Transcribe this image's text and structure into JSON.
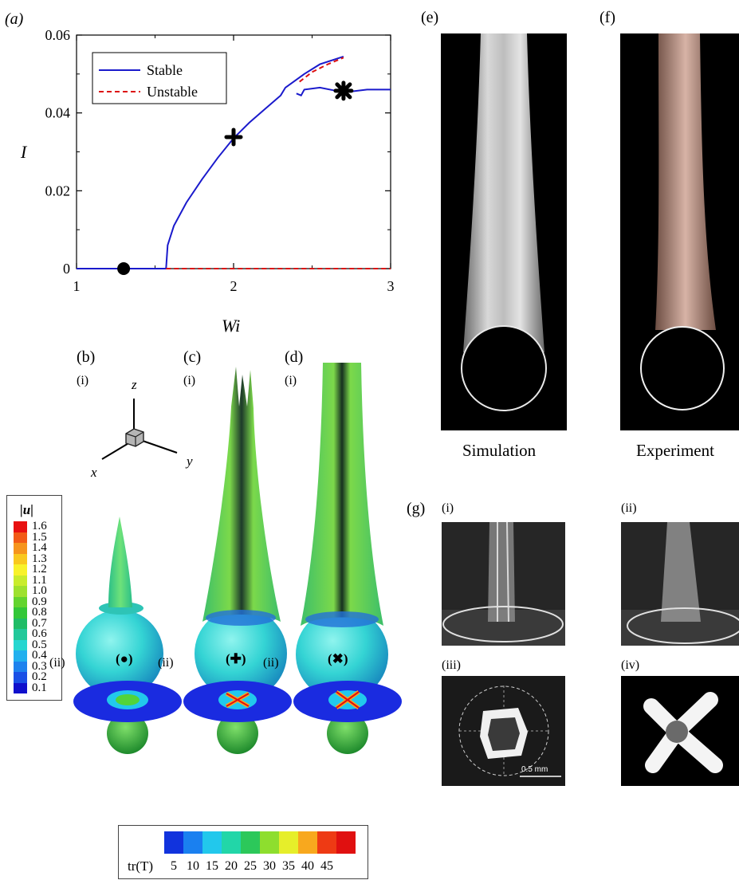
{
  "panels": {
    "a": "(a)",
    "b": "(b)",
    "c": "(c)",
    "d": "(d)",
    "e": "(e)",
    "f": "(f)",
    "g": "(g)"
  },
  "sublabels": {
    "i": "(i)",
    "ii": "(ii)",
    "iii": "(iii)",
    "iv": "(iv)"
  },
  "markers": {
    "circle": "(●)",
    "plus": "(✚)",
    "cross": "(✖)"
  },
  "chart_data": {
    "type": "line",
    "xlabel": "Wi",
    "ylabel": "I",
    "xlim": [
      1,
      3
    ],
    "ylim": [
      0,
      0.06
    ],
    "xticks": [
      "1",
      "2",
      "3"
    ],
    "yticks": [
      "0",
      "0.02",
      "0.04",
      "0.06"
    ],
    "legend_position": "top-left",
    "series": [
      {
        "name": "Stable",
        "color": "#1a1acc",
        "style": "solid",
        "segments": [
          [
            [
              1.0,
              0
            ],
            [
              1.57,
              0
            ]
          ],
          [
            [
              1.57,
              0
            ],
            [
              1.58,
              0.006
            ],
            [
              1.62,
              0.011
            ],
            [
              1.7,
              0.017
            ],
            [
              1.8,
              0.023
            ],
            [
              1.9,
              0.0285
            ],
            [
              2.0,
              0.0335
            ],
            [
              2.1,
              0.0375
            ],
            [
              2.2,
              0.041
            ],
            [
              2.3,
              0.0445
            ],
            [
              2.33,
              0.0465
            ],
            [
              2.45,
              0.05
            ],
            [
              2.55,
              0.0525
            ],
            [
              2.7,
              0.0545
            ]
          ],
          [
            [
              2.4,
              0.045
            ],
            [
              2.43,
              0.0445
            ],
            [
              2.45,
              0.046
            ],
            [
              2.55,
              0.0465
            ],
            [
              2.65,
              0.0457
            ],
            [
              2.75,
              0.0455
            ],
            [
              2.85,
              0.046
            ],
            [
              3.0,
              0.046
            ]
          ]
        ]
      },
      {
        "name": "Unstable",
        "color": "#dd1111",
        "style": "dashed",
        "segments": [
          [
            [
              1.57,
              0
            ],
            [
              3.0,
              0
            ]
          ],
          [
            [
              2.42,
              0.048
            ],
            [
              2.5,
              0.0505
            ],
            [
              2.6,
              0.0525
            ],
            [
              2.7,
              0.0542
            ]
          ]
        ]
      }
    ],
    "points": [
      {
        "marker": "circle",
        "x": 1.3,
        "y": 0
      },
      {
        "marker": "plus",
        "x": 2.0,
        "y": 0.0338
      },
      {
        "marker": "cross",
        "x": 2.7,
        "y": 0.0457
      }
    ]
  },
  "axes3d": {
    "z": "z",
    "x": "x",
    "y": "y"
  },
  "velocity_colorbar": {
    "title": "|u|",
    "ticks": [
      "1.6",
      "1.5",
      "1.4",
      "1.3",
      "1.2",
      "1.1",
      "1.0",
      "0.9",
      "0.8",
      "0.7",
      "0.6",
      "0.5",
      "0.4",
      "0.3",
      "0.2",
      "0.1"
    ],
    "colors": [
      "#e81010",
      "#f25a16",
      "#f6941c",
      "#f9c81e",
      "#f8f22a",
      "#c9ec2c",
      "#9ee12e",
      "#63d42e",
      "#33c738",
      "#1fbc66",
      "#22c89a",
      "#26d6d0",
      "#22b0ee",
      "#1e82ee",
      "#1a50e6",
      "#1010cc"
    ]
  },
  "stress_colorbar": {
    "label": "tr(T)",
    "ticks": [
      "5",
      "10",
      "15",
      "20",
      "25",
      "30",
      "35",
      "40",
      "45"
    ],
    "colors": [
      "#1133dd",
      "#1a80f0",
      "#22c8ec",
      "#22d6a8",
      "#2cc85a",
      "#8ede2e",
      "#e6ee2a",
      "#f8a81e",
      "#ee3a14",
      "#e01010"
    ]
  },
  "captions": {
    "simulation": "Simulation",
    "experiment": "Experiment"
  },
  "scale_bar": "0.5 mm"
}
